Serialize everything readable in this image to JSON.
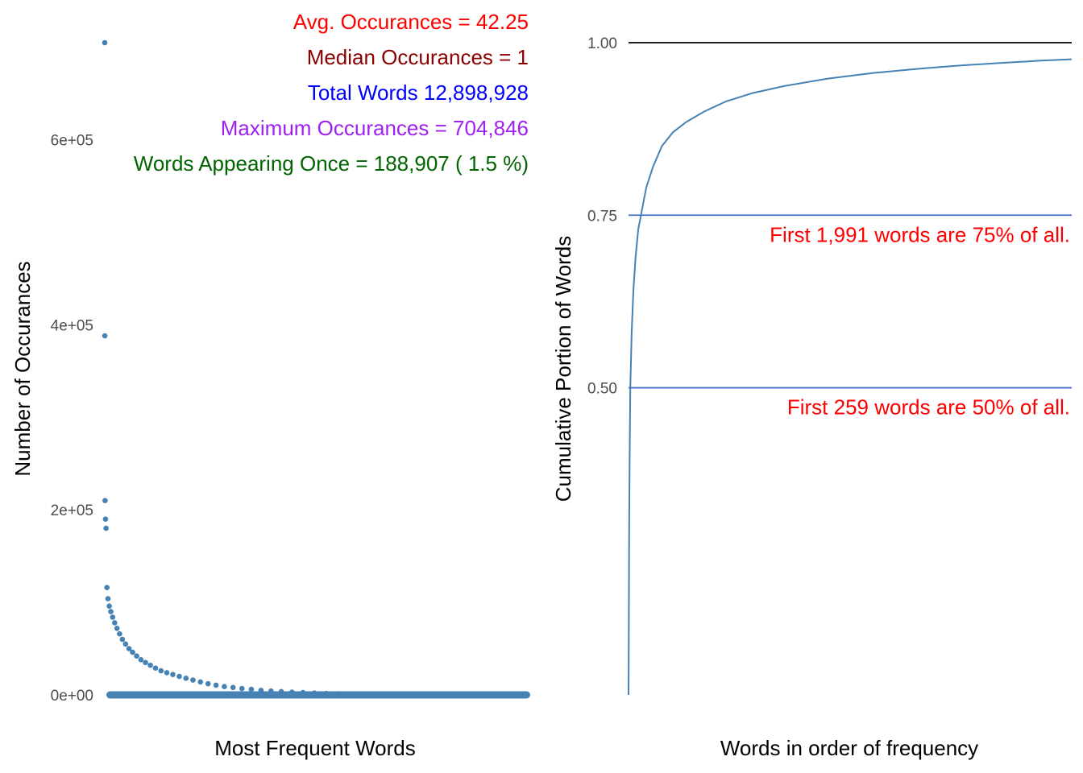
{
  "chart_data": [
    {
      "type": "scatter",
      "xlabel": "Most Frequent Words",
      "ylabel": "Number of Occurances",
      "ylim": [
        0,
        704846
      ],
      "y_ticks": [
        {
          "value": 0,
          "label": "0e+00"
        },
        {
          "value": 200000,
          "label": "2e+05"
        },
        {
          "value": 400000,
          "label": "4e+05"
        },
        {
          "value": 600000,
          "label": "6e+05"
        }
      ],
      "point_color": "#4682B4",
      "grid": false,
      "series": [
        {
          "values": [
            704846,
            388000,
            210000,
            190000,
            180000,
            116000,
            104000,
            96000,
            90000,
            84000,
            78000,
            72000,
            66000,
            60000,
            55000,
            50000,
            46000,
            42000,
            38000,
            35000,
            32000,
            29000,
            26000,
            24000,
            22000,
            20000,
            18000,
            16000,
            14000,
            12000,
            10500,
            9000,
            8000,
            7000,
            6000,
            5000,
            4200,
            3600,
            3000,
            2500,
            2000,
            1600,
            1300,
            1000,
            800,
            600,
            450,
            320,
            220,
            140,
            80,
            40,
            15,
            5,
            2,
            1
          ]
        }
      ],
      "annotations": [
        {
          "text": "Avg. Occurances =  42.25",
          "color": "#FF0000"
        },
        {
          "text": "Median Occurances =  1",
          "color": "#8B0000"
        },
        {
          "text": "Total Words  12,898,928",
          "color": "#0000FF"
        },
        {
          "text": "Maximum Occurances = 704,846",
          "color": "#A020F0"
        },
        {
          "text": "Words Appearing Once = 188,907 ( 1.5 %)",
          "color": "#006400"
        }
      ]
    },
    {
      "type": "line",
      "xlabel": "Words in order of frequency",
      "ylabel": "Cumulative Portion of Words",
      "ylim": [
        0.055,
        1.0
      ],
      "y_ticks": [
        {
          "value": 0.5,
          "label": "0.50"
        },
        {
          "value": 0.75,
          "label": "0.75"
        },
        {
          "value": 1.0,
          "label": "1.00"
        }
      ],
      "line_color": "#4682B4",
      "grid": false,
      "curve_points": [
        [
          0,
          0.055
        ],
        [
          0.0004,
          0.1
        ],
        [
          0.001,
          0.2
        ],
        [
          0.0015,
          0.3
        ],
        [
          0.0025,
          0.4
        ],
        [
          0.004,
          0.5
        ],
        [
          0.007,
          0.58
        ],
        [
          0.011,
          0.64
        ],
        [
          0.016,
          0.69
        ],
        [
          0.022,
          0.73
        ],
        [
          0.028,
          0.75
        ],
        [
          0.04,
          0.79
        ],
        [
          0.055,
          0.82
        ],
        [
          0.075,
          0.85
        ],
        [
          0.1,
          0.87
        ],
        [
          0.13,
          0.885
        ],
        [
          0.17,
          0.9
        ],
        [
          0.22,
          0.915
        ],
        [
          0.28,
          0.927
        ],
        [
          0.35,
          0.937
        ],
        [
          0.45,
          0.948
        ],
        [
          0.55,
          0.956
        ],
        [
          0.65,
          0.962
        ],
        [
          0.75,
          0.967
        ],
        [
          0.85,
          0.971
        ],
        [
          0.93,
          0.974
        ],
        [
          1.0,
          0.976
        ]
      ],
      "reference_lines": [
        {
          "y": 1.0,
          "color": "#000000"
        },
        {
          "y": 0.75,
          "color": "#4472C4",
          "label": "First  1,991  words are 75% of all.",
          "label_color": "#FF0000"
        },
        {
          "y": 0.5,
          "color": "#4472C4",
          "label": "First  259  words are 50% of all.",
          "label_color": "#FF0000"
        }
      ]
    }
  ]
}
